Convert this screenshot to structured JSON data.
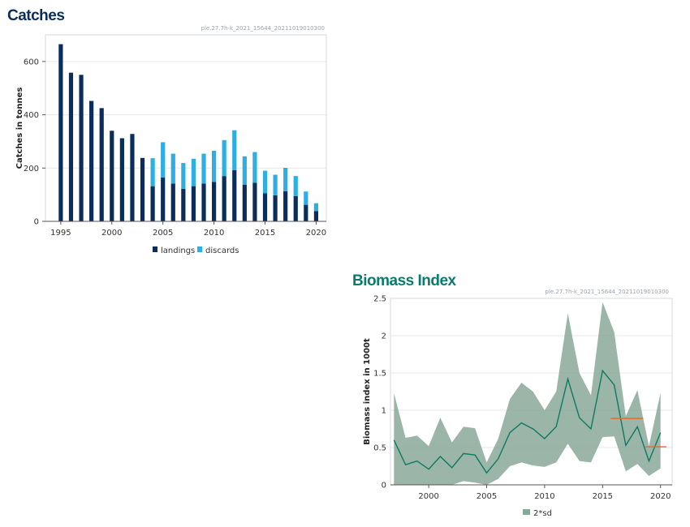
{
  "catches": {
    "title": "Catches",
    "stamp": "ple.27.7h-k_2021_15644_20211019010300",
    "chart_data": {
      "type": "bar",
      "stacked": true,
      "x": [
        1995,
        1996,
        1997,
        1998,
        1999,
        2000,
        2001,
        2002,
        2003,
        2004,
        2005,
        2006,
        2007,
        2008,
        2009,
        2010,
        2011,
        2012,
        2013,
        2014,
        2015,
        2016,
        2017,
        2018,
        2019,
        2020
      ],
      "series": [
        {
          "name": "landings",
          "color": "#0b2d5b",
          "values": [
            665,
            558,
            550,
            452,
            425,
            340,
            312,
            328,
            238,
            132,
            165,
            142,
            122,
            132,
            142,
            148,
            170,
            192,
            137,
            145,
            105,
            98,
            113,
            95,
            62,
            38
          ]
        },
        {
          "name": "discards",
          "color": "#2eaee3",
          "values": [
            0,
            0,
            0,
            0,
            0,
            0,
            0,
            0,
            0,
            105,
            132,
            112,
            97,
            103,
            112,
            117,
            135,
            150,
            107,
            115,
            85,
            77,
            88,
            75,
            50,
            30
          ]
        }
      ],
      "ylabel": "Catches in tonnes",
      "xlim": [
        1993.5,
        2021
      ],
      "ylim": [
        0,
        700
      ],
      "xticks": [
        1995,
        2000,
        2005,
        2010,
        2015,
        2020
      ],
      "yticks": [
        0,
        200,
        400,
        600
      ],
      "grid": true,
      "legend": "bottom"
    }
  },
  "biomass": {
    "title": "Biomass Index",
    "stamp": "ple.27.7h-k_2021_15644_20211019010300",
    "chart_data": {
      "type": "line",
      "x": [
        1997,
        1998,
        1999,
        2000,
        2001,
        2002,
        2003,
        2004,
        2005,
        2006,
        2007,
        2008,
        2009,
        2010,
        2011,
        2012,
        2013,
        2014,
        2015,
        2016,
        2017,
        2018,
        2019,
        2020
      ],
      "series": [
        {
          "name": "",
          "color": "#0e7a62",
          "values": [
            0.6,
            0.27,
            0.32,
            0.21,
            0.38,
            0.23,
            0.42,
            0.4,
            0.16,
            0.35,
            0.7,
            0.83,
            0.75,
            0.62,
            0.78,
            1.42,
            0.9,
            0.75,
            1.53,
            1.34,
            0.53,
            0.78,
            0.32,
            0.7
          ]
        }
      ],
      "band": {
        "name": "2*sd",
        "color": "#8aa899",
        "lower": [
          0,
          0,
          0,
          0,
          0,
          0,
          0.05,
          0.03,
          0,
          0.08,
          0.25,
          0.3,
          0.26,
          0.24,
          0.3,
          0.55,
          0.32,
          0.3,
          0.64,
          0.65,
          0.18,
          0.28,
          0.12,
          0.22
        ],
        "upper": [
          1.23,
          0.63,
          0.66,
          0.52,
          0.9,
          0.57,
          0.78,
          0.76,
          0.3,
          0.62,
          1.15,
          1.37,
          1.25,
          1.0,
          1.25,
          2.3,
          1.5,
          1.2,
          2.45,
          2.05,
          0.92,
          1.27,
          0.52,
          1.23
        ]
      },
      "reference_lines": [
        {
          "color": "#e8682a",
          "x": [
            2015.7,
            2018.5
          ],
          "y": 0.89
        },
        {
          "color": "#e8682a",
          "x": [
            2018.7,
            2020.5
          ],
          "y": 0.51
        }
      ],
      "ylabel": "Biomass index in 1000t",
      "xlim": [
        1996.7,
        2021
      ],
      "ylim": [
        0,
        2.5
      ],
      "xticks": [
        2000,
        2005,
        2010,
        2015,
        2020
      ],
      "yticks": [
        0,
        0.5,
        1,
        1.5,
        2,
        2.5
      ],
      "grid": true,
      "legend": "bottom"
    }
  }
}
